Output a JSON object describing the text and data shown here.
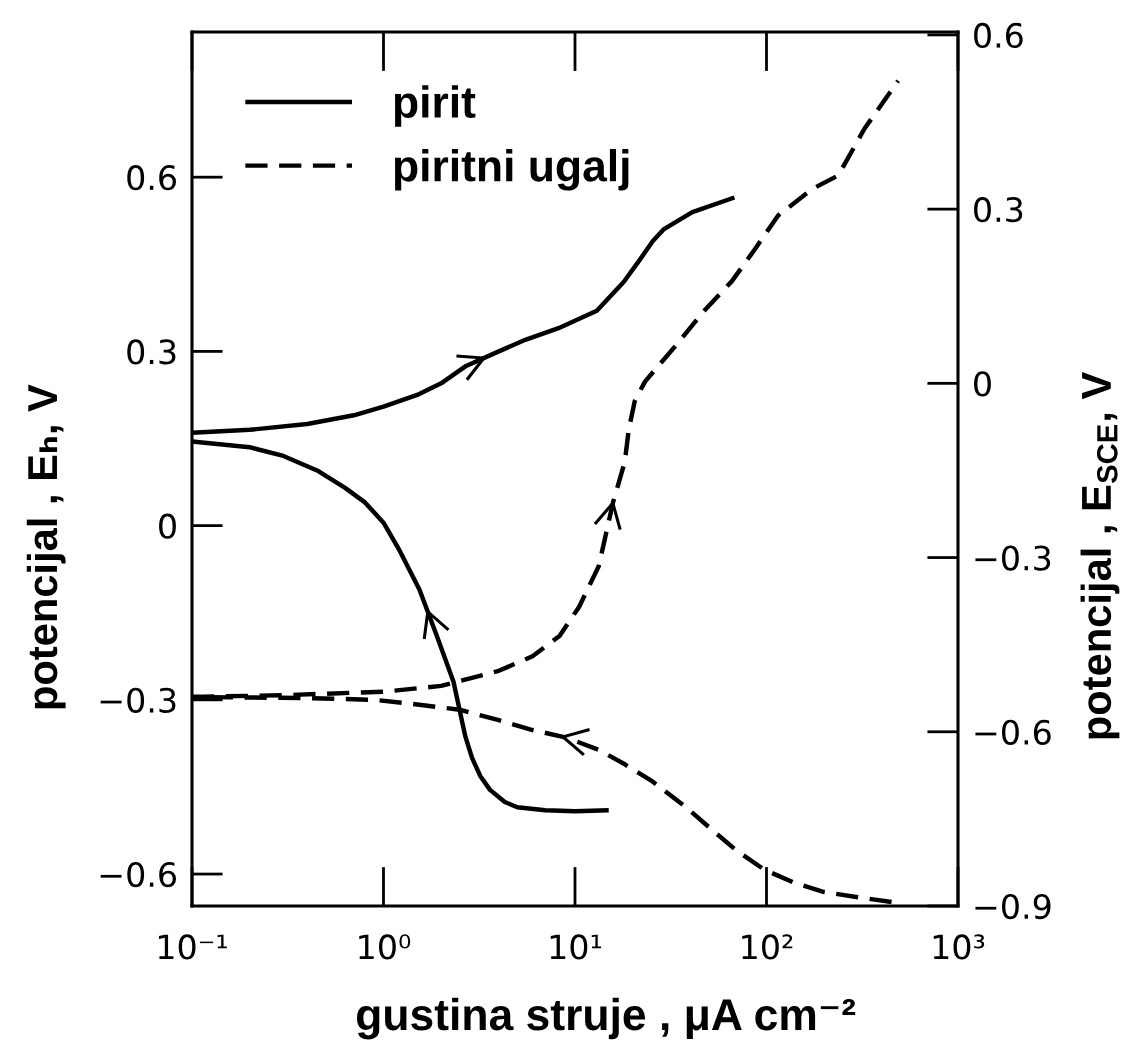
{
  "chart_data": {
    "type": "line",
    "xlabel": "gustina struje , μA cm⁻²",
    "ylabel": "potencijal , Eₕ, V",
    "y2label": "potencijal , E$_{SCE}$, V",
    "log": "x",
    "xlim": [
      0.1,
      1000
    ],
    "xticks": [
      {
        "value": 0.1,
        "label": "10⁻¹"
      },
      {
        "value": 1,
        "label": "10⁰"
      },
      {
        "value": 10,
        "label": "10¹"
      },
      {
        "value": 100,
        "label": "10²"
      },
      {
        "value": 1000,
        "label": "10³"
      }
    ],
    "ylim": [
      -0.655,
      0.85
    ],
    "yticks": [
      {
        "value": -0.6,
        "label": "−0.6"
      },
      {
        "value": -0.3,
        "label": "−0.3"
      },
      0,
      0.3,
      0.6
    ],
    "y2lim": [
      -0.9,
      0.605
    ],
    "y2ticks": [
      {
        "value": -0.9,
        "label": "−0.9"
      },
      {
        "value": -0.6,
        "label": "−0.6"
      },
      {
        "value": -0.3,
        "label": "−0.3"
      },
      0,
      0.3,
      0.6
    ],
    "grid": false,
    "legend": "top left",
    "series": [
      {
        "name": "pirit",
        "color": "#000000",
        "line_style": "solid",
        "x": [
          0.1,
          0.2,
          0.4,
          0.7,
          1,
          1.5,
          2,
          2.7,
          4,
          5.5,
          8.2,
          13,
          18,
          21.5,
          25.5,
          29,
          41,
          68
        ],
        "values": [
          0.16,
          0.165,
          0.175,
          0.19,
          0.205,
          0.225,
          0.245,
          0.275,
          0.3,
          0.32,
          0.34,
          0.37,
          0.42,
          0.455,
          0.49,
          0.51,
          0.54,
          0.565
        ]
      },
      {
        "color": "#000000",
        "line_style": "solid",
        "x": [
          15,
          10,
          7,
          5,
          4.3,
          3.6,
          3.2,
          2.9,
          2.67,
          2.32,
          1.9,
          1.54,
          1.2,
          1,
          0.8,
          0.63,
          0.45,
          0.3,
          0.2,
          0.1
        ],
        "values": [
          -0.49,
          -0.492,
          -0.49,
          -0.485,
          -0.476,
          -0.455,
          -0.431,
          -0.4,
          -0.362,
          -0.269,
          -0.19,
          -0.11,
          -0.04,
          0.005,
          0.04,
          0.065,
          0.095,
          0.12,
          0.135,
          0.145
        ]
      },
      {
        "name": "piritni ugalj",
        "color": "#000000",
        "line_style": "dashed",
        "x": [
          0.1,
          0.3,
          1,
          2,
          4,
          6,
          8.3,
          10.5,
          13.3,
          15.8,
          18.2,
          19.1,
          20.5,
          23.2,
          27.4,
          35,
          47,
          66,
          87,
          115,
          174,
          237,
          324,
          487
        ],
        "values": [
          -0.295,
          -0.292,
          -0.286,
          -0.276,
          -0.25,
          -0.225,
          -0.19,
          -0.14,
          -0.07,
          0.04,
          0.11,
          0.166,
          0.214,
          0.248,
          0.276,
          0.317,
          0.369,
          0.421,
          0.476,
          0.534,
          0.58,
          0.603,
          0.683,
          0.766
        ]
      },
      {
        "color": "#000000",
        "line_style": "dashed",
        "x": [
          450,
          300,
          200,
          140,
          98,
          70,
          52,
          38,
          25.5,
          18,
          13.3,
          9,
          6,
          4,
          2.5,
          1.5,
          0.9,
          0.4,
          0.1
        ],
        "values": [
          -0.648,
          -0.64,
          -0.631,
          -0.615,
          -0.593,
          -0.56,
          -0.524,
          -0.485,
          -0.441,
          -0.41,
          -0.386,
          -0.365,
          -0.352,
          -0.335,
          -0.317,
          -0.308,
          -0.3,
          -0.297,
          -0.295
        ]
      }
    ]
  }
}
